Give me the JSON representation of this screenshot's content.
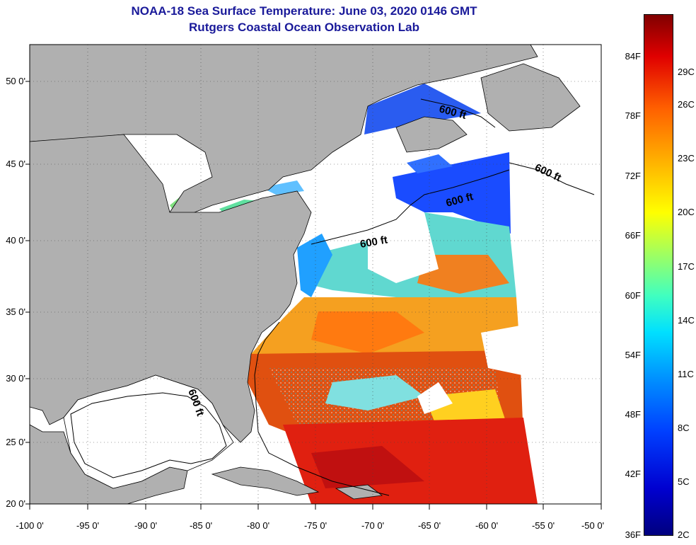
{
  "header": {
    "title_line1": "NOAA-18 Sea Surface Temperature:  June 03, 2020 0146 GMT",
    "title_line2": "Rutgers Coastal Ocean Observation Lab"
  },
  "map": {
    "lat_labels": [
      "50 0'",
      "45 0'",
      "40 0'",
      "35 0'",
      "30 0'",
      "25 0'",
      "20 0'"
    ],
    "lon_labels": [
      "-100 0'",
      "-95 0'",
      "-90 0'",
      "-85 0'",
      "-80 0'",
      "-75 0'",
      "-70 0'",
      "-65 0'",
      "-60 0'",
      "-55 0'",
      "-50 0'"
    ],
    "depth_contour_labels": [
      "600 ft",
      "600 ft",
      "600 ft",
      "600 ft",
      "600 ft"
    ],
    "land_color": "#b0b0b0",
    "no_data_color": "#ffffff"
  },
  "colorbar": {
    "fahrenheit_labels": [
      "84F",
      "78F",
      "72F",
      "66F",
      "60F",
      "54F",
      "48F",
      "42F",
      "36F"
    ],
    "celsius_labels": [
      "29C",
      "26C",
      "23C",
      "20C",
      "17C",
      "14C",
      "11C",
      "8C",
      "5C",
      "2C"
    ]
  }
}
